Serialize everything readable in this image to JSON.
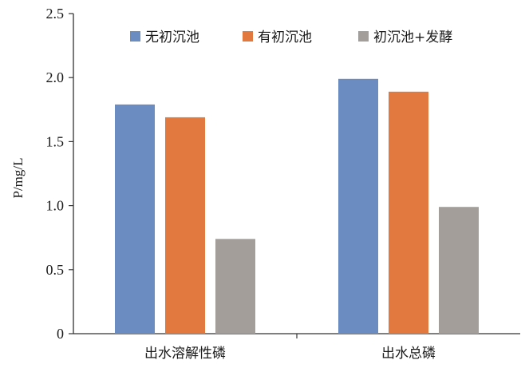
{
  "chart_data": {
    "type": "bar",
    "title": "",
    "xlabel": "",
    "ylabel": "P/mg/L",
    "ylim": [
      0,
      2.5
    ],
    "yticks": [
      "0",
      "0.5",
      "1.0",
      "1.5",
      "2.0",
      "2.5"
    ],
    "yticks_values": [
      0,
      0.5,
      1.0,
      1.5,
      2.0,
      2.5
    ],
    "grid": false,
    "legend_position": "top",
    "categories": [
      "出水溶解性磷",
      "出水总磷"
    ],
    "series": [
      {
        "name": "无初沉池",
        "color": "#6a8cc0",
        "values": [
          1.79,
          1.99
        ]
      },
      {
        "name": "有初沉池",
        "color": "#e27a40",
        "values": [
          1.69,
          1.89
        ]
      },
      {
        "name": "初沉池+发酵",
        "color": "#a39e9a",
        "values": [
          0.74,
          0.99
        ]
      }
    ]
  }
}
